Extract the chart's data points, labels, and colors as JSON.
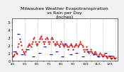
{
  "title": "Milwaukee Weather Evapotranspiration\nvs Rain per Day\n(Inches)",
  "title_fontsize": 4.5,
  "background_color": "#f0f0f0",
  "plot_bg": "#ffffff",
  "ylim": [
    0,
    0.55
  ],
  "yticks": [
    0.0,
    0.1,
    0.2,
    0.3,
    0.4,
    0.5
  ],
  "ytick_labels": [
    "0",
    ".1",
    ".2",
    ".3",
    ".4",
    ".5"
  ],
  "ylabel_fontsize": 3.5,
  "xlabel_fontsize": 3.0,
  "grid_color": "#aaaaaa",
  "et_color": "#cc0000",
  "rain_color": "#0000cc",
  "et_x": [
    1,
    2,
    3,
    4,
    5,
    6,
    7,
    8,
    9,
    10,
    11,
    12,
    13,
    14,
    15,
    16,
    17,
    18,
    19,
    20,
    21,
    22,
    23,
    24,
    25,
    26,
    27,
    28,
    29,
    30,
    31,
    32,
    33,
    34,
    35,
    36,
    37,
    38,
    39,
    40,
    41,
    42,
    43,
    44,
    45,
    46,
    47,
    48,
    49,
    50,
    51,
    52,
    53,
    54,
    55,
    56,
    57,
    58,
    59,
    60,
    61,
    62,
    63,
    64,
    65,
    66,
    67,
    68,
    69,
    70,
    71,
    72,
    73,
    74,
    75,
    76,
    77,
    78,
    79,
    80,
    81,
    82,
    83,
    84,
    85,
    86,
    87,
    88,
    89,
    90,
    91,
    92,
    93,
    94,
    95,
    96,
    97,
    98,
    99,
    100,
    101,
    102,
    103,
    104,
    105,
    106,
    107,
    108,
    109,
    110,
    111,
    112,
    113,
    114,
    115,
    116,
    117,
    118,
    119,
    120
  ],
  "et_y": [
    0.05,
    0.06,
    0.08,
    0.12,
    0.1,
    0.09,
    0.18,
    0.22,
    0.28,
    0.25,
    0.2,
    0.15,
    0.12,
    0.1,
    0.08,
    0.12,
    0.15,
    0.18,
    0.2,
    0.22,
    0.2,
    0.18,
    0.22,
    0.25,
    0.28,
    0.3,
    0.25,
    0.22,
    0.2,
    0.22,
    0.25,
    0.28,
    0.3,
    0.32,
    0.28,
    0.25,
    0.22,
    0.25,
    0.28,
    0.3,
    0.28,
    0.25,
    0.22,
    0.25,
    0.28,
    0.3,
    0.28,
    0.25,
    0.22,
    0.2,
    0.22,
    0.25,
    0.22,
    0.2,
    0.18,
    0.22,
    0.25,
    0.22,
    0.2,
    0.18,
    0.2,
    0.22,
    0.2,
    0.18,
    0.15,
    0.18,
    0.2,
    0.22,
    0.2,
    0.18,
    0.15,
    0.18,
    0.2,
    0.22,
    0.2,
    0.18,
    0.2,
    0.22,
    0.25,
    0.22,
    0.2,
    0.18,
    0.15,
    0.12,
    0.15,
    0.18,
    0.15,
    0.12,
    0.1,
    0.12,
    0.15,
    0.12,
    0.1,
    0.08,
    0.1,
    0.12,
    0.1,
    0.08,
    0.06,
    0.05,
    0.08,
    0.1,
    0.08,
    0.06,
    0.05,
    0.06,
    0.08,
    0.06,
    0.05,
    0.04,
    0.05,
    0.06,
    0.05,
    0.04,
    0.03,
    0.04,
    0.05,
    0.04,
    0.03,
    0.04
  ],
  "rain_x": [
    3,
    8,
    12,
    18,
    25,
    32,
    38,
    45,
    52,
    58,
    62,
    68,
    75,
    82,
    88,
    95,
    100,
    108,
    115
  ],
  "rain_y": [
    0.12,
    0.35,
    0.08,
    0.15,
    0.05,
    0.1,
    0.18,
    0.08,
    0.12,
    0.05,
    0.22,
    0.08,
    0.1,
    0.05,
    0.12,
    0.08,
    0.05,
    0.1,
    0.06
  ],
  "vline_positions": [
    15,
    30,
    45,
    60,
    75,
    90,
    105,
    120
  ],
  "xtick_positions": [
    1,
    8,
    15,
    22,
    29,
    36,
    43,
    50,
    57,
    64,
    71,
    78,
    85,
    92,
    99,
    106,
    113,
    120
  ],
  "xtick_labels": [
    "4/1",
    "",
    "5/1",
    "",
    "6/1",
    "",
    "7/1",
    "",
    "8/1",
    "",
    "9/1",
    "",
    "10/1",
    "",
    "11/1",
    "",
    "12/1",
    ""
  ]
}
